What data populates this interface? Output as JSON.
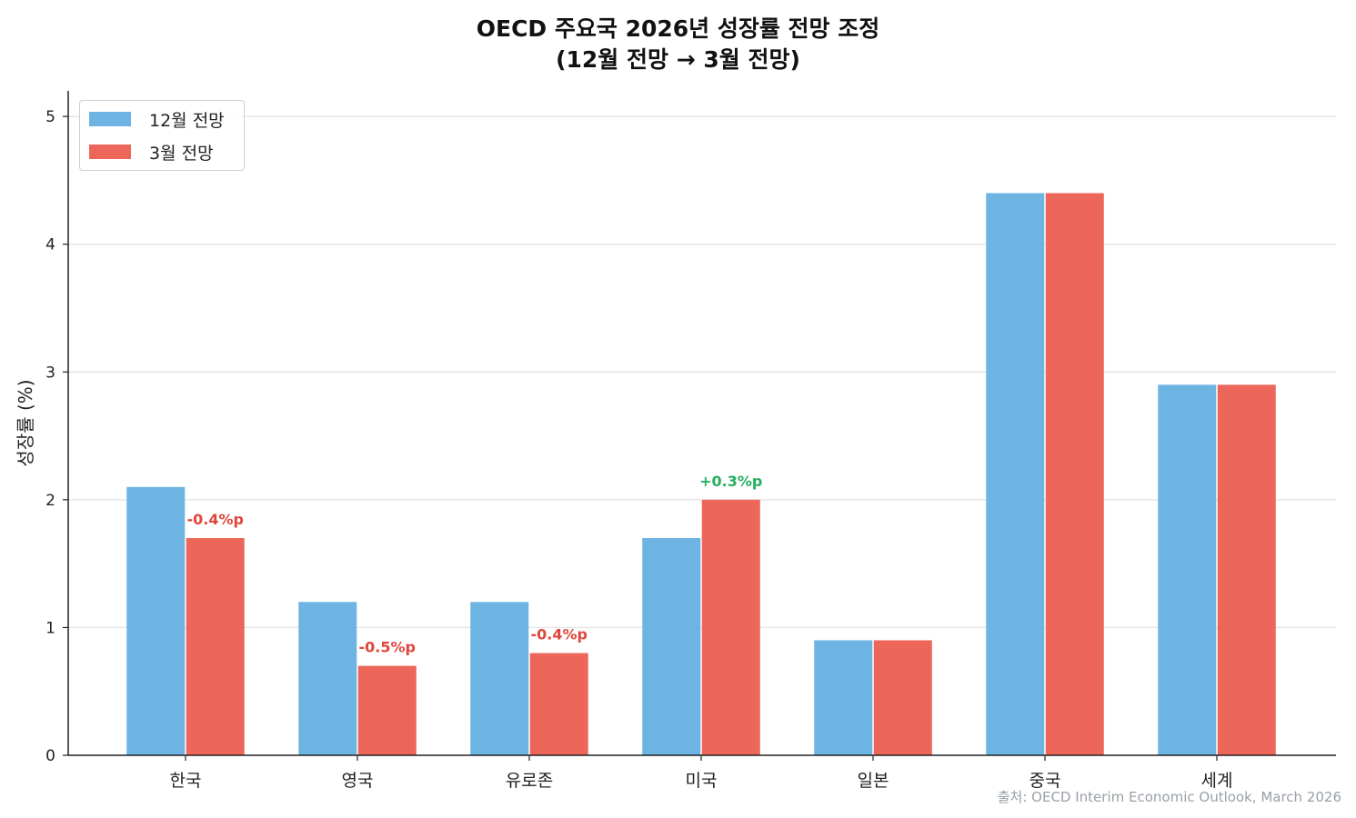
{
  "chart_data": {
    "type": "bar",
    "title_line1": "OECD 주요국 2026년 성장률 전망 조정",
    "title_line2": "(12월 전망 → 3월 전망)",
    "xlabel": "",
    "ylabel": "성장률 (%)",
    "ylim": [
      0,
      5.2
    ],
    "yticks": [
      0,
      1,
      2,
      3,
      4,
      5
    ],
    "grid": true,
    "legend_position": "top-left",
    "categories": [
      "한국",
      "영국",
      "유로존",
      "미국",
      "일본",
      "중국",
      "세계"
    ],
    "series": [
      {
        "name": "12월 전망",
        "color": "#6db4e3",
        "values": [
          2.1,
          1.2,
          1.2,
          1.7,
          0.9,
          4.4,
          2.9
        ]
      },
      {
        "name": "3월 전망",
        "color": "#ec6759",
        "values": [
          1.7,
          0.7,
          0.8,
          2.0,
          0.9,
          4.4,
          2.9
        ]
      }
    ],
    "annotations": [
      {
        "category": "한국",
        "text": "-0.4%p",
        "color": "#e0463a"
      },
      {
        "category": "영국",
        "text": "-0.5%p",
        "color": "#e0463a"
      },
      {
        "category": "유로존",
        "text": "-0.4%p",
        "color": "#e0463a"
      },
      {
        "category": "미국",
        "text": "+0.3%p",
        "color": "#27ae60"
      }
    ],
    "source": "출처: OECD Interim Economic Outlook, March 2026"
  }
}
